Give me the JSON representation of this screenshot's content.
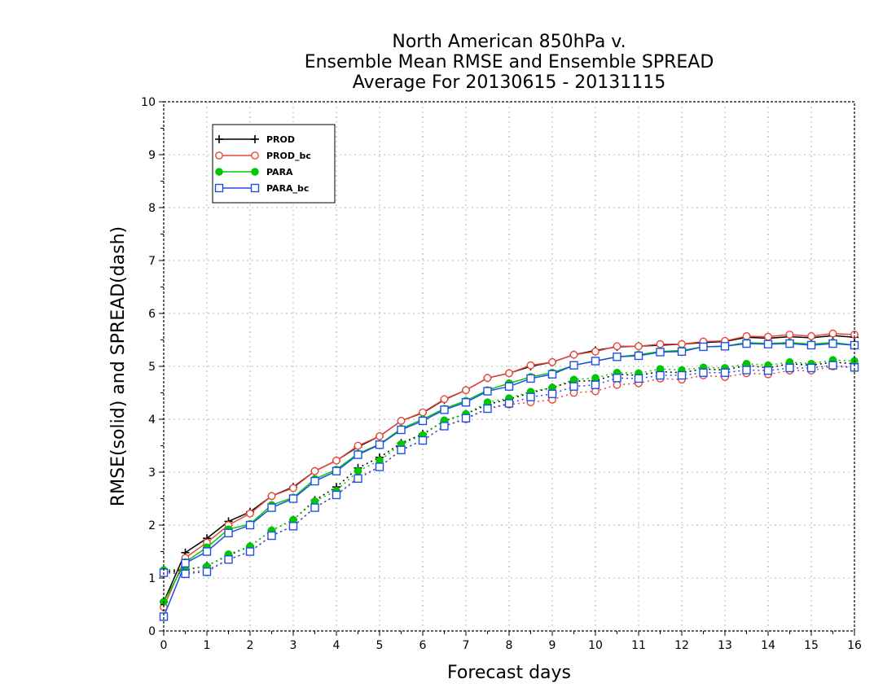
{
  "chart_data": {
    "type": "line",
    "title": [
      "North American 850hPa v.",
      "Ensemble Mean RMSE and Ensemble SPREAD",
      "Average For 20130615 - 20131115"
    ],
    "xlabel": "Forecast days",
    "ylabel": "RMSE(solid) and SPREAD(dash)",
    "xlim": [
      0,
      16
    ],
    "ylim": [
      0,
      10
    ],
    "xticks": [
      0,
      1,
      2,
      3,
      4,
      5,
      6,
      7,
      8,
      9,
      10,
      11,
      12,
      13,
      14,
      15,
      16
    ],
    "yticks": [
      0,
      1,
      2,
      3,
      4,
      5,
      6,
      7,
      8,
      9,
      10
    ],
    "grid": true,
    "legend_position": "top-left",
    "x": [
      0,
      0.5,
      1,
      1.5,
      2,
      2.5,
      3,
      3.5,
      4,
      4.5,
      5,
      5.5,
      6,
      6.5,
      7,
      7.5,
      8,
      8.5,
      9,
      9.5,
      10,
      10.5,
      11,
      11.5,
      12,
      12.5,
      13,
      13.5,
      14,
      14.5,
      15,
      15.5,
      16
    ],
    "series": [
      {
        "name": "PROD",
        "color": "#000000",
        "marker": "plus",
        "rmse": [
          0.55,
          1.48,
          1.75,
          2.07,
          2.25,
          2.55,
          2.72,
          3.02,
          3.22,
          3.48,
          3.68,
          3.97,
          4.12,
          4.37,
          4.55,
          4.78,
          4.87,
          5.0,
          5.08,
          5.22,
          5.3,
          5.37,
          5.38,
          5.4,
          5.42,
          5.45,
          5.47,
          5.55,
          5.53,
          5.56,
          5.54,
          5.58,
          5.55
        ],
        "spread": [
          1.12,
          1.15,
          1.23,
          1.43,
          1.6,
          1.9,
          2.1,
          2.47,
          2.72,
          3.08,
          3.28,
          3.55,
          3.72,
          3.97,
          4.1,
          4.28,
          4.38,
          4.5,
          4.6,
          4.72,
          4.73,
          4.85,
          4.83,
          4.9,
          4.88,
          4.95,
          4.93,
          5.02,
          4.97,
          5.05,
          5.02,
          5.08,
          5.05
        ]
      },
      {
        "name": "PROD_bc",
        "color": "#e8463a",
        "marker": "open-circle",
        "rmse": [
          0.45,
          1.38,
          1.67,
          2.0,
          2.22,
          2.55,
          2.7,
          3.02,
          3.22,
          3.5,
          3.68,
          3.97,
          4.13,
          4.38,
          4.55,
          4.78,
          4.87,
          5.02,
          5.08,
          5.22,
          5.28,
          5.38,
          5.38,
          5.42,
          5.42,
          5.47,
          5.48,
          5.57,
          5.56,
          5.6,
          5.57,
          5.62,
          5.6
        ],
        "spread": [
          1.12,
          1.1,
          1.15,
          1.35,
          1.5,
          1.8,
          1.98,
          2.33,
          2.57,
          2.9,
          3.1,
          3.42,
          3.6,
          3.87,
          4.0,
          4.2,
          4.28,
          4.32,
          4.37,
          4.5,
          4.53,
          4.65,
          4.68,
          4.77,
          4.75,
          4.83,
          4.8,
          4.87,
          4.85,
          4.92,
          4.92,
          5.0,
          4.97
        ]
      },
      {
        "name": "PARA",
        "color": "#00c800",
        "marker": "filled-circle",
        "rmse": [
          0.55,
          1.3,
          1.58,
          1.92,
          2.02,
          2.38,
          2.52,
          2.87,
          3.05,
          3.35,
          3.53,
          3.82,
          4.0,
          4.2,
          4.35,
          4.55,
          4.68,
          4.8,
          4.88,
          5.02,
          5.1,
          5.18,
          5.22,
          5.28,
          5.3,
          5.37,
          5.38,
          5.45,
          5.43,
          5.45,
          5.42,
          5.45,
          5.4
        ],
        "spread": [
          1.15,
          1.17,
          1.22,
          1.45,
          1.6,
          1.9,
          2.1,
          2.45,
          2.65,
          3.02,
          3.22,
          3.53,
          3.7,
          3.98,
          4.1,
          4.32,
          4.4,
          4.52,
          4.6,
          4.75,
          4.78,
          4.88,
          4.87,
          4.95,
          4.93,
          4.98,
          4.97,
          5.05,
          5.02,
          5.08,
          5.05,
          5.12,
          5.1
        ]
      },
      {
        "name": "PARA_bc",
        "color": "#1e50e6",
        "marker": "open-square",
        "rmse": [
          0.27,
          1.28,
          1.5,
          1.85,
          2.0,
          2.33,
          2.5,
          2.83,
          3.02,
          3.33,
          3.52,
          3.8,
          3.97,
          4.18,
          4.32,
          4.53,
          4.62,
          4.77,
          4.85,
          5.02,
          5.1,
          5.18,
          5.2,
          5.27,
          5.28,
          5.37,
          5.38,
          5.43,
          5.42,
          5.43,
          5.4,
          5.43,
          5.4
        ],
        "spread": [
          1.1,
          1.08,
          1.12,
          1.35,
          1.5,
          1.8,
          1.98,
          2.33,
          2.57,
          2.88,
          3.1,
          3.42,
          3.6,
          3.87,
          4.02,
          4.2,
          4.3,
          4.42,
          4.48,
          4.62,
          4.65,
          4.78,
          4.77,
          4.83,
          4.83,
          4.88,
          4.88,
          4.93,
          4.92,
          4.97,
          4.97,
          5.02,
          4.98
        ]
      }
    ]
  }
}
